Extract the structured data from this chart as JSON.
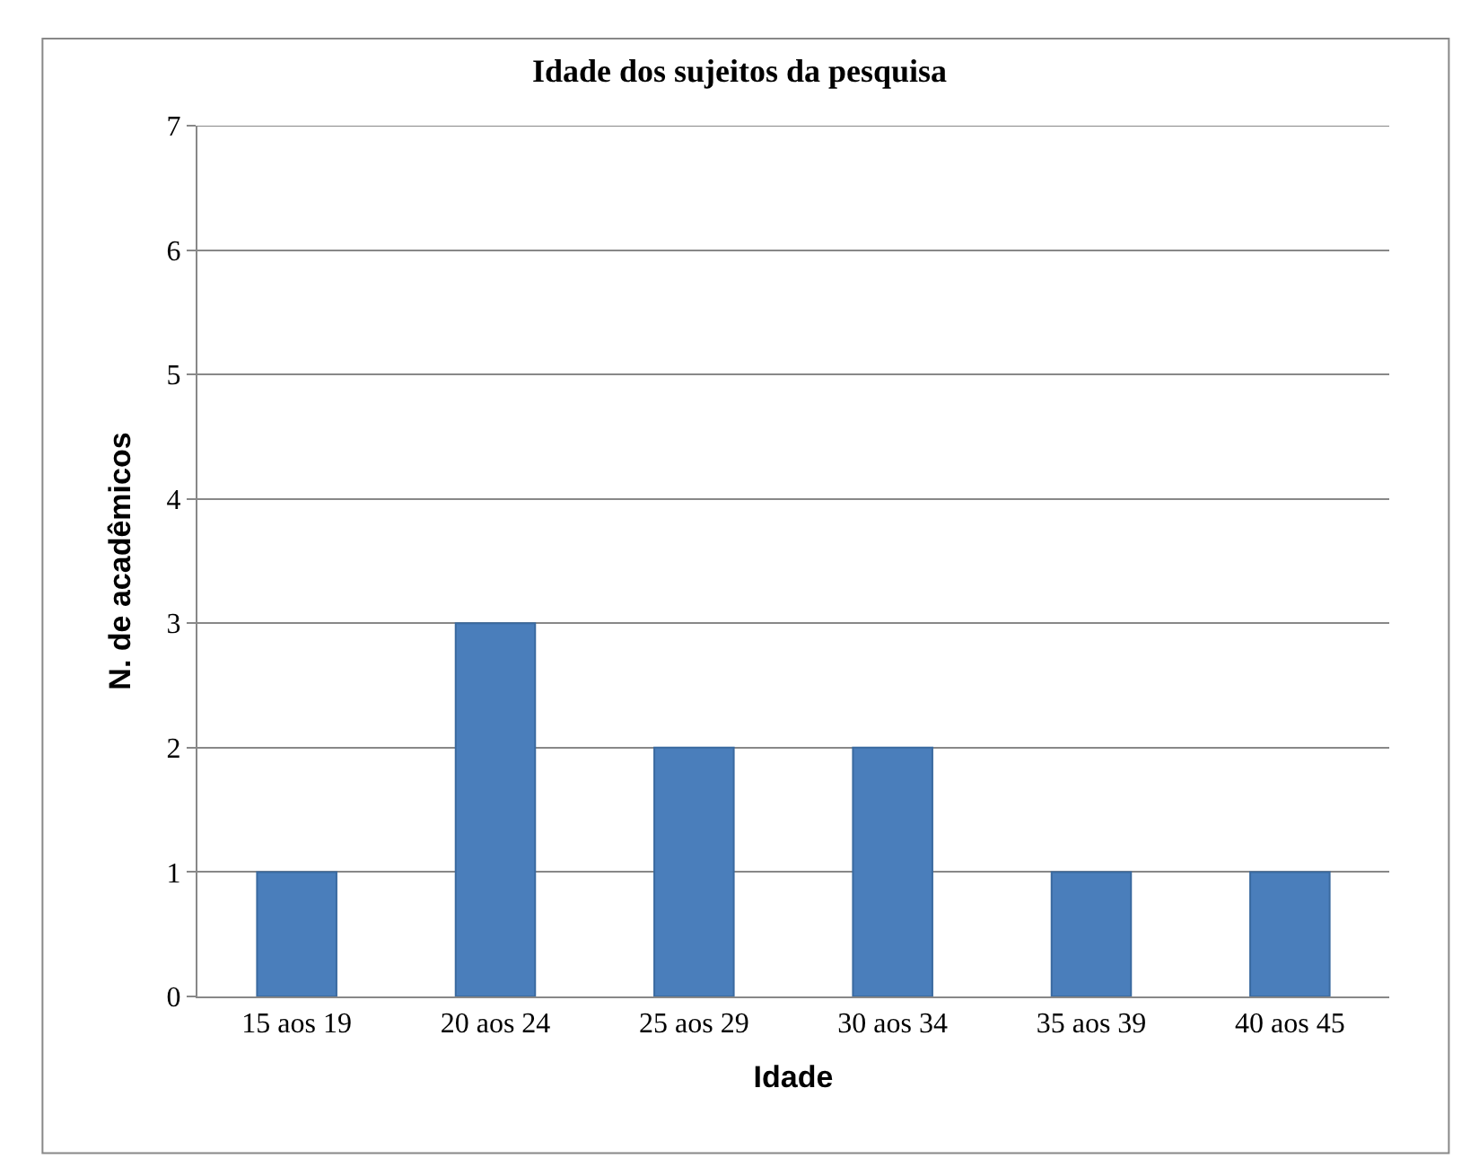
{
  "chart_data": {
    "type": "bar",
    "title": "Idade dos sujeitos da pesquisa",
    "xlabel": "Idade",
    "ylabel": "N. de acadêmicos",
    "categories": [
      "15 aos 19",
      "20 aos 24",
      "25 aos 29",
      "30 aos 34",
      "35 aos 39",
      "40 aos 45"
    ],
    "values": [
      1,
      3,
      2,
      2,
      1,
      1
    ],
    "color": "#4a7ebb",
    "ylim": [
      0,
      7
    ],
    "yticks": [
      0,
      1,
      2,
      3,
      4,
      5,
      6,
      7
    ],
    "grid": "y"
  }
}
